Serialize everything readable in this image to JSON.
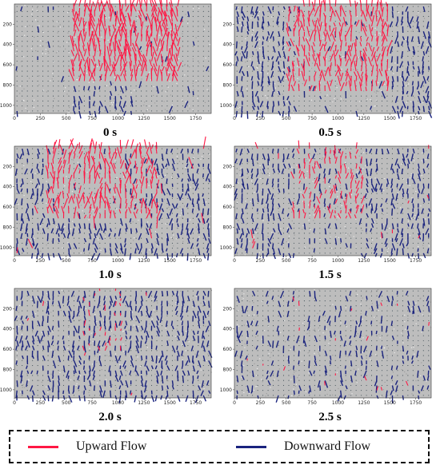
{
  "colors": {
    "upward": "#ff1744",
    "downward": "#1a237e",
    "background": "#bdbdbd"
  },
  "axes": {
    "x_ticks": [
      "0",
      "250",
      "500",
      "750",
      "1000",
      "1250",
      "1500",
      "1750"
    ],
    "y_ticks": [
      "200",
      "400",
      "600",
      "800",
      "1000"
    ]
  },
  "panels": [
    {
      "caption": "0 s"
    },
    {
      "caption": "0.5 s"
    },
    {
      "caption": "1.0 s"
    },
    {
      "caption": "1.5 s"
    },
    {
      "caption": "2.0 s"
    },
    {
      "caption": "2.5 s"
    }
  ],
  "legend": {
    "upward_label": "Upward Flow",
    "downward_label": "Downward Flow"
  }
}
